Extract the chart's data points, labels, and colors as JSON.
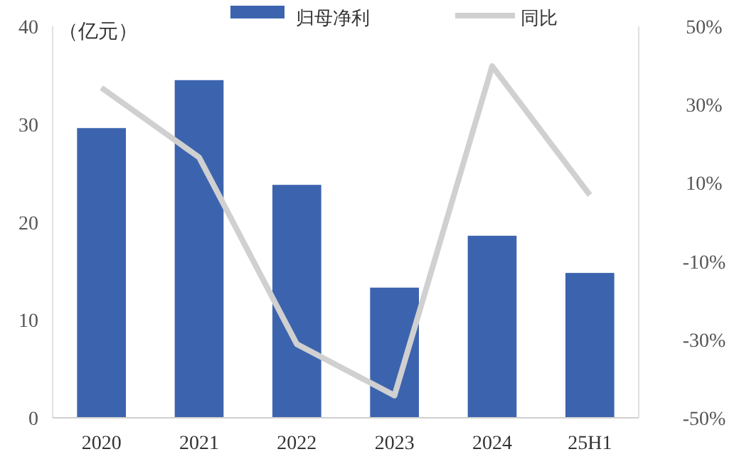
{
  "chart_data": {
    "type": "bar",
    "categories": [
      "2020",
      "2021",
      "2022",
      "2023",
      "2024",
      "25H1"
    ],
    "series": [
      {
        "name": "归母净利",
        "color": "#3c64ae",
        "values": [
          29.6,
          34.5,
          23.8,
          13.3,
          18.6,
          14.8
        ]
      },
      {
        "name": "同比",
        "type": "line",
        "axis": "y2",
        "color": "#d0d0d0",
        "values": [
          34.3,
          16.5,
          -31.2,
          -44.3,
          39.8,
          6.9
        ]
      }
    ],
    "ylim": [
      0,
      40
    ],
    "yticks": [
      0,
      10,
      20,
      30,
      40
    ],
    "y2lim": [
      -50,
      50
    ],
    "y2ticks": [
      {
        "value": -50,
        "label": "-50%"
      },
      {
        "value": -30,
        "label": "-30%"
      },
      {
        "value": -10,
        "label": "-10%"
      },
      {
        "value": 10,
        "label": "10%"
      },
      {
        "value": 30,
        "label": "30%"
      },
      {
        "value": 50,
        "label": "50%"
      }
    ],
    "annotations": [
      "（亿元）"
    ],
    "legend": "top",
    "grid": false
  }
}
